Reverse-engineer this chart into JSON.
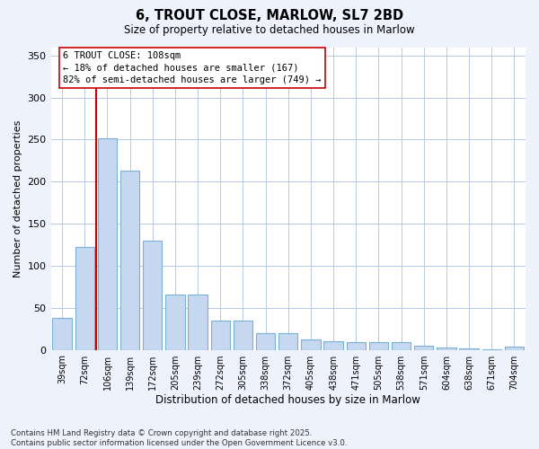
{
  "title1": "6, TROUT CLOSE, MARLOW, SL7 2BD",
  "title2": "Size of property relative to detached houses in Marlow",
  "xlabel": "Distribution of detached houses by size in Marlow",
  "ylabel": "Number of detached properties",
  "categories": [
    "39sqm",
    "72sqm",
    "106sqm",
    "139sqm",
    "172sqm",
    "205sqm",
    "239sqm",
    "272sqm",
    "305sqm",
    "338sqm",
    "372sqm",
    "405sqm",
    "438sqm",
    "471sqm",
    "505sqm",
    "538sqm",
    "571sqm",
    "604sqm",
    "638sqm",
    "671sqm",
    "704sqm"
  ],
  "values": [
    38,
    122,
    252,
    213,
    130,
    66,
    66,
    35,
    35,
    20,
    20,
    12,
    10,
    9,
    9,
    9,
    5,
    3,
    2,
    1,
    4
  ],
  "bar_color": "#c5d8f0",
  "bar_edge_color": "#7bafd4",
  "vline_index": 2,
  "vline_color": "#cc0000",
  "annotation_text": "6 TROUT CLOSE: 108sqm\n← 18% of detached houses are smaller (167)\n82% of semi-detached houses are larger (749) →",
  "annotation_box_color": "#ffffff",
  "annotation_box_edge_color": "#cc0000",
  "ylim": [
    0,
    360
  ],
  "yticks": [
    0,
    50,
    100,
    150,
    200,
    250,
    300,
    350
  ],
  "footer": "Contains HM Land Registry data © Crown copyright and database right 2025.\nContains public sector information licensed under the Open Government Licence v3.0.",
  "background_color": "#eef2fb",
  "plot_background": "#ffffff",
  "grid_color": "#b8c8e8"
}
